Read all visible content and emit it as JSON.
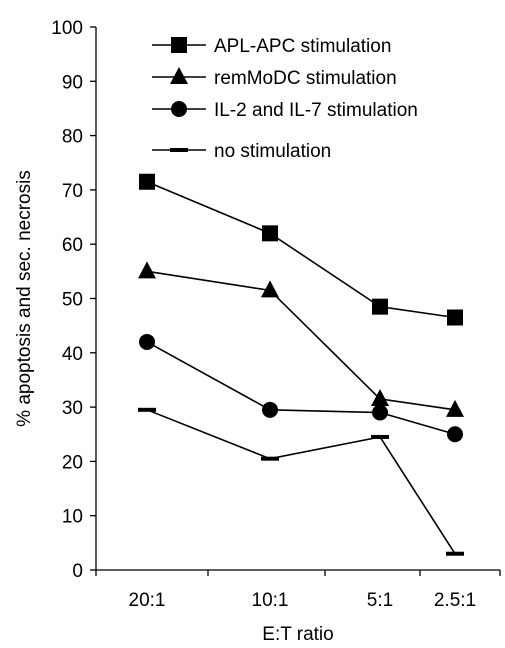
{
  "chart_data": {
    "type": "line",
    "title": "",
    "xlabel": "E:T ratio",
    "ylabel": "% apoptosis and sec. necrosis",
    "categories": [
      "20:1",
      "10:1",
      "5:1",
      "2.5:1"
    ],
    "ylim": [
      0,
      100
    ],
    "yticks": [
      0,
      10,
      20,
      30,
      40,
      50,
      60,
      70,
      80,
      90,
      100
    ],
    "grid": false,
    "legend_position": "top-right",
    "series": [
      {
        "name": "APL-APC stimulation",
        "marker": "square",
        "values": [
          71.5,
          62,
          48.5,
          46.5
        ]
      },
      {
        "name": "remMoDC stimulation",
        "marker": "triangle",
        "values": [
          55,
          51.5,
          31.5,
          29.5
        ]
      },
      {
        "name": "IL-2 and IL-7 stimulation",
        "marker": "circle",
        "values": [
          42,
          29.5,
          29,
          25
        ]
      },
      {
        "name": "no stimulation",
        "marker": "dash",
        "values": [
          29.5,
          20.5,
          24.5,
          3
        ]
      }
    ],
    "colors": {
      "line": "#000000",
      "marker": "#000000",
      "background": "#ffffff"
    }
  }
}
